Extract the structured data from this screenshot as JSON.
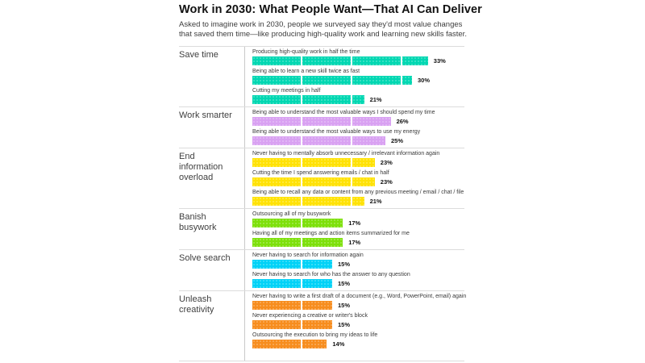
{
  "title": "Work in 2030: What People Want—That AI Can Deliver",
  "subtitle": "Asked to imagine work in 2030, people we surveyed say they'd most value changes that saved them time—like producing high-quality work and learning new skills faster.",
  "chart_data": {
    "type": "bar",
    "orientation": "horizontal",
    "title": "Work in 2030: What People Want—That AI Can Deliver",
    "unit": "%",
    "xlim": [
      0,
      35
    ],
    "gridlines": "white vertical lines every 10% visible inside bars",
    "legend_position": "none",
    "sections": [
      {
        "category": "Save time",
        "color": "#00d7b2",
        "items": [
          {
            "label": "Producing high-quality work in half the time",
            "value": 33
          },
          {
            "label": "Being able to learn a new skill twice as fast",
            "value": 30
          },
          {
            "label": "Cutting my meetings in half",
            "value": 21
          }
        ]
      },
      {
        "category": "Work smarter",
        "color": "#d9a1f2",
        "items": [
          {
            "label": "Being able to understand the most valuable ways I should spend my time",
            "value": 26
          },
          {
            "label": "Being able to understand the most valuable ways to use my energy",
            "value": 25
          }
        ]
      },
      {
        "category": "End information overload",
        "color": "#ffe206",
        "items": [
          {
            "label": "Never having to mentally absorb unnecessary / irrelevant information again",
            "value": 23
          },
          {
            "label": "Cutting the time I spend answering emails / chat in half",
            "value": 23
          },
          {
            "label": "Being able to recall any data or content from any previous meeting / email / chat / file",
            "value": 21
          }
        ]
      },
      {
        "category": "Banish busywork",
        "color": "#7de00a",
        "items": [
          {
            "label": "Outsourcing all of my busywork",
            "value": 17
          },
          {
            "label": "Having all of my meetings and action items summarized for me",
            "value": 17
          }
        ]
      },
      {
        "category": "Solve search",
        "color": "#00d2f7",
        "items": [
          {
            "label": "Never having to search for information again",
            "value": 15
          },
          {
            "label": "Never having to search for who has the answer to any question",
            "value": 15
          }
        ]
      },
      {
        "category": "Unleash creativity",
        "color": "#f78d1e",
        "items": [
          {
            "label": "Never having to write a first draft of a document (e.g., Word, PowerPoint, email) again",
            "value": 15
          },
          {
            "label": "Never experiencing a creative or writer's block",
            "value": 15
          },
          {
            "label": "Outsourcing the execution to bring my ideas to life",
            "value": 14
          }
        ]
      }
    ]
  }
}
